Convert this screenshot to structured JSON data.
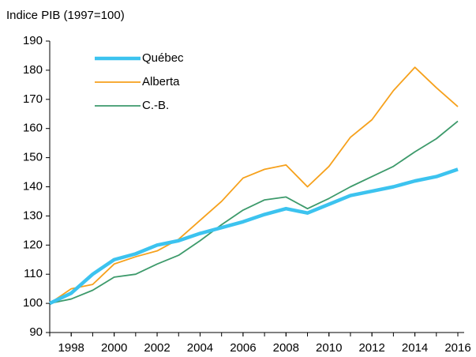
{
  "chart_data": {
    "type": "line",
    "ylabel": "Indice PIB (1997=100)",
    "x": [
      1997,
      1998,
      1999,
      2000,
      2001,
      2002,
      2003,
      2004,
      2005,
      2006,
      2007,
      2008,
      2009,
      2010,
      2011,
      2012,
      2013,
      2014,
      2015,
      2016
    ],
    "series": [
      {
        "name": "Québec",
        "color": "#3cc3ef",
        "values": [
          100,
          103.5,
          110,
          115,
          117,
          120,
          121.5,
          124,
          126,
          128,
          130.5,
          132.5,
          131,
          134,
          137,
          138.5,
          140,
          142,
          143.5,
          146
        ]
      },
      {
        "name": "Alberta",
        "color": "#f6a11c",
        "values": [
          100,
          105,
          106.5,
          113.5,
          116,
          118,
          122,
          128.5,
          135,
          143,
          146,
          147.5,
          140,
          147,
          157,
          163,
          173,
          181,
          174,
          167.5
        ]
      },
      {
        "name": "C.-B.",
        "color": "#3d9a6b",
        "values": [
          100,
          101.5,
          104.5,
          109,
          110,
          113.5,
          116.5,
          121.5,
          127,
          132,
          135.5,
          136.5,
          132.5,
          136,
          140,
          143.5,
          147,
          152,
          156.5,
          162.5
        ]
      }
    ],
    "xlim": [
      1997,
      2016
    ],
    "xticks": [
      1998,
      2000,
      2002,
      2004,
      2006,
      2008,
      2010,
      2012,
      2014,
      2016
    ],
    "ylim": [
      90,
      190
    ],
    "yticks": [
      90,
      100,
      110,
      120,
      130,
      140,
      150,
      160,
      170,
      180,
      190
    ],
    "legend": "upper left"
  }
}
